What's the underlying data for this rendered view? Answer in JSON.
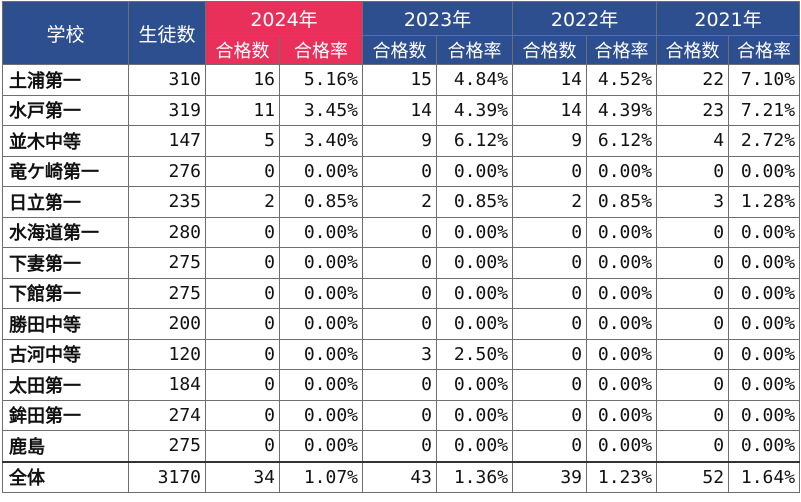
{
  "header": {
    "school": "学校",
    "students": "生徒数",
    "years": [
      "2024年",
      "2023年",
      "2022年",
      "2021年"
    ],
    "sub_count": "合格数",
    "sub_rate": "合格率"
  },
  "rows": [
    {
      "school": "土浦第一",
      "students": "310",
      "c2024": "16",
      "r2024": "5.16%",
      "c2023": "15",
      "r2023": "4.84%",
      "c2022": "14",
      "r2022": "4.52%",
      "c2021": "22",
      "r2021": "7.10%"
    },
    {
      "school": "水戸第一",
      "students": "319",
      "c2024": "11",
      "r2024": "3.45%",
      "c2023": "14",
      "r2023": "4.39%",
      "c2022": "14",
      "r2022": "4.39%",
      "c2021": "23",
      "r2021": "7.21%"
    },
    {
      "school": "並木中等",
      "students": "147",
      "c2024": "5",
      "r2024": "3.40%",
      "c2023": "9",
      "r2023": "6.12%",
      "c2022": "9",
      "r2022": "6.12%",
      "c2021": "4",
      "r2021": "2.72%"
    },
    {
      "school": "竜ケ崎第一",
      "students": "276",
      "c2024": "0",
      "r2024": "0.00%",
      "c2023": "0",
      "r2023": "0.00%",
      "c2022": "0",
      "r2022": "0.00%",
      "c2021": "0",
      "r2021": "0.00%"
    },
    {
      "school": "日立第一",
      "students": "235",
      "c2024": "2",
      "r2024": "0.85%",
      "c2023": "2",
      "r2023": "0.85%",
      "c2022": "2",
      "r2022": "0.85%",
      "c2021": "3",
      "r2021": "1.28%"
    },
    {
      "school": "水海道第一",
      "students": "280",
      "c2024": "0",
      "r2024": "0.00%",
      "c2023": "0",
      "r2023": "0.00%",
      "c2022": "0",
      "r2022": "0.00%",
      "c2021": "0",
      "r2021": "0.00%"
    },
    {
      "school": "下妻第一",
      "students": "275",
      "c2024": "0",
      "r2024": "0.00%",
      "c2023": "0",
      "r2023": "0.00%",
      "c2022": "0",
      "r2022": "0.00%",
      "c2021": "0",
      "r2021": "0.00%"
    },
    {
      "school": "下館第一",
      "students": "275",
      "c2024": "0",
      "r2024": "0.00%",
      "c2023": "0",
      "r2023": "0.00%",
      "c2022": "0",
      "r2022": "0.00%",
      "c2021": "0",
      "r2021": "0.00%"
    },
    {
      "school": "勝田中等",
      "students": "200",
      "c2024": "0",
      "r2024": "0.00%",
      "c2023": "0",
      "r2023": "0.00%",
      "c2022": "0",
      "r2022": "0.00%",
      "c2021": "0",
      "r2021": "0.00%"
    },
    {
      "school": "古河中等",
      "students": "120",
      "c2024": "0",
      "r2024": "0.00%",
      "c2023": "3",
      "r2023": "2.50%",
      "c2022": "0",
      "r2022": "0.00%",
      "c2021": "0",
      "r2021": "0.00%"
    },
    {
      "school": "太田第一",
      "students": "184",
      "c2024": "0",
      "r2024": "0.00%",
      "c2023": "0",
      "r2023": "0.00%",
      "c2022": "0",
      "r2022": "0.00%",
      "c2021": "0",
      "r2021": "0.00%"
    },
    {
      "school": "鉾田第一",
      "students": "274",
      "c2024": "0",
      "r2024": "0.00%",
      "c2023": "0",
      "r2023": "0.00%",
      "c2022": "0",
      "r2022": "0.00%",
      "c2021": "0",
      "r2021": "0.00%"
    },
    {
      "school": "鹿島",
      "students": "275",
      "c2024": "0",
      "r2024": "0.00%",
      "c2023": "0",
      "r2023": "0.00%",
      "c2022": "0",
      "r2022": "0.00%",
      "c2021": "0",
      "r2021": "0.00%"
    }
  ],
  "total": {
    "school": "全体",
    "students": "3170",
    "c2024": "34",
    "r2024": "1.07%",
    "c2023": "43",
    "r2023": "1.36%",
    "c2022": "39",
    "r2022": "1.23%",
    "c2021": "52",
    "r2021": "1.64%"
  },
  "colors": {
    "header_blue": "#2e4f8f",
    "header_2024": "#e8305a"
  }
}
